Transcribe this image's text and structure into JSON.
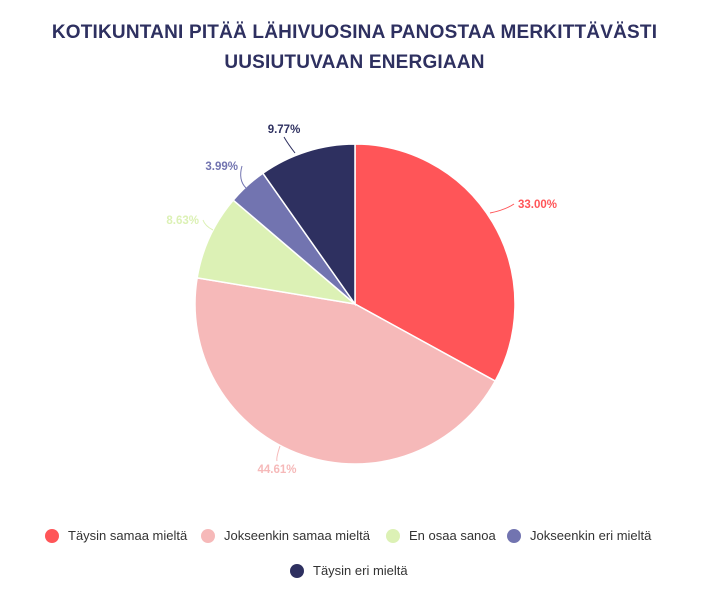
{
  "chart_data": {
    "type": "pie",
    "title": "KOTIKUNTANI PITÄÄ LÄHIVUOSINA PANOSTAA MERKITTÄVÄSTI UUSIUTUVAAN ENERGIAAN",
    "title_lines": [
      "KOTIKUNTANI PITÄÄ LÄHIVUOSINA PANOSTAA MERKITTÄVÄSTI",
      "UUSIUTUVAAN ENERGIAAN"
    ],
    "slices": [
      {
        "label": "Täysin samaa mieltä",
        "value": 33.0,
        "display": "33.00%",
        "color": "#ff5558"
      },
      {
        "label": "Jokseenkin samaa mieltä",
        "value": 44.61,
        "display": "44.61%",
        "color": "#f6b9b9"
      },
      {
        "label": "En osaa sanoa",
        "value": 8.63,
        "display": "8.63%",
        "color": "#dcf1b5"
      },
      {
        "label": "Jokseenkin eri mieltä",
        "value": 3.99,
        "display": "3.99%",
        "color": "#7274b0"
      },
      {
        "label": "Täysin eri mieltä",
        "value": 9.77,
        "display": "9.77%",
        "color": "#2e3060"
      }
    ],
    "start_angle": "12 o'clock",
    "direction": "clockwise",
    "legend_position": "bottom"
  }
}
